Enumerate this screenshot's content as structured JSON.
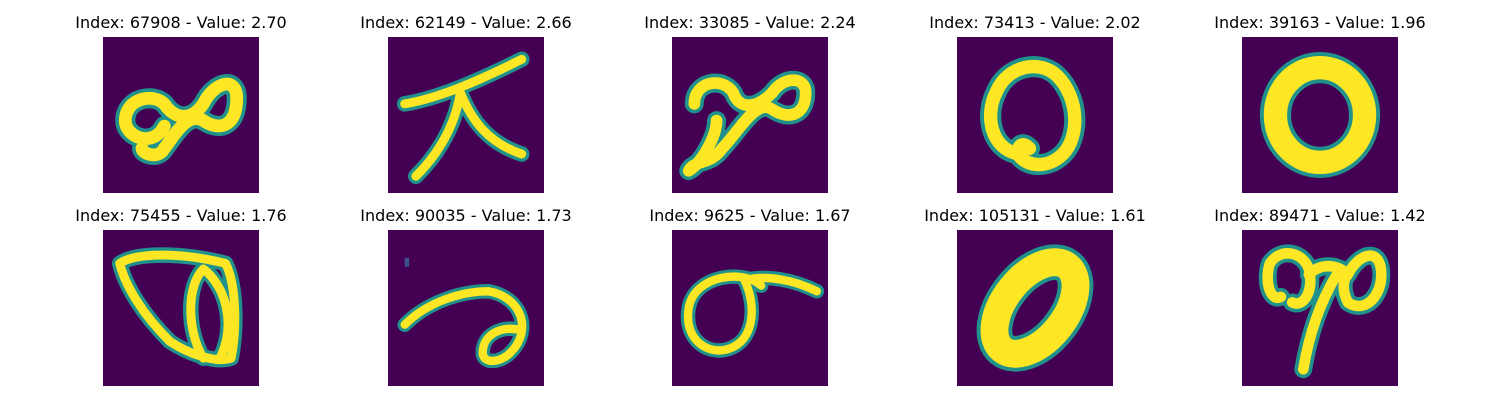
{
  "colors": {
    "background": "#440154",
    "ink": "#fde725",
    "edge": "#21918c"
  },
  "panels": [
    {
      "title": "Index: 67908 - Value: 2.70",
      "glyph": "ink-figure-loop-pair"
    },
    {
      "title": "Index: 62149 - Value: 2.66",
      "glyph": "ink-figure-branching-strokes"
    },
    {
      "title": "Index: 33085 - Value: 2.24",
      "glyph": "ink-figure-loop-pair"
    },
    {
      "title": "Index: 73413 - Value: 2.02",
      "glyph": "ink-figure-oval"
    },
    {
      "title": "Index: 39163 - Value: 1.96",
      "glyph": "ink-figure-oval"
    },
    {
      "title": "Index: 75455 - Value: 1.76",
      "glyph": "ink-figure-loops"
    },
    {
      "title": "Index: 90035 - Value: 1.73",
      "glyph": "ink-figure-curve"
    },
    {
      "title": "Index: 9625 - Value: 1.67",
      "glyph": "ink-figure-loop-with-tail"
    },
    {
      "title": "Index: 105131 - Value: 1.61",
      "glyph": "ink-figure-oval"
    },
    {
      "title": "Index: 89471 - Value: 1.42",
      "glyph": "ink-figure-loop-pair"
    }
  ]
}
